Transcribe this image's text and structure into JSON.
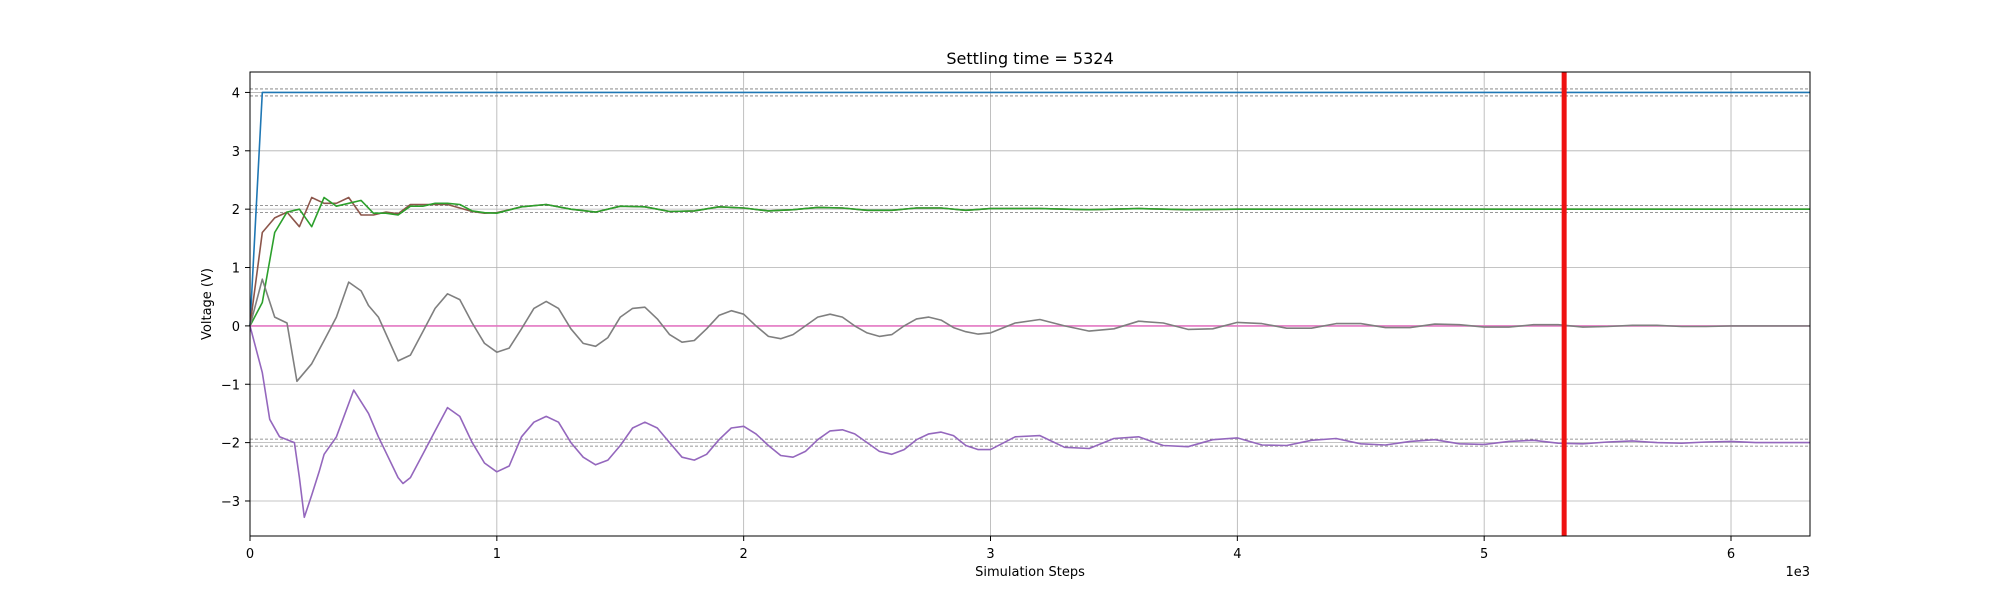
{
  "chart_data": {
    "type": "line",
    "title": "Settling time = 5324",
    "xlabel": "Simulation Steps",
    "ylabel": "Voltage (V)",
    "x_offset_label": "1e3",
    "xlim": [
      0,
      6320
    ],
    "ylim": [
      -3.6,
      4.35
    ],
    "xticks": [
      0,
      1000,
      2000,
      3000,
      4000,
      5000,
      6000
    ],
    "xtick_labels": [
      "0",
      "1",
      "2",
      "3",
      "4",
      "5",
      "6"
    ],
    "yticks": [
      -3,
      -2,
      -1,
      0,
      1,
      2,
      3,
      4
    ],
    "ytick_labels": [
      "−3",
      "−2",
      "−1",
      "0",
      "1",
      "2",
      "3",
      "4"
    ],
    "grid": true,
    "settling_time": 5324,
    "settling_line_color": "#ee1111",
    "tolerance_bands": [
      {
        "center": 4,
        "low": 3.94,
        "high": 4.06
      },
      {
        "center": 2,
        "low": 1.94,
        "high": 2.06
      },
      {
        "center": -2,
        "low": -2.06,
        "high": -1.94
      }
    ],
    "series": [
      {
        "color": "#1f77b4",
        "x": [
          0,
          50,
          6320
        ],
        "y": [
          0,
          4,
          4
        ]
      },
      {
        "color": "#8c564b",
        "x": [
          0,
          50,
          100,
          150,
          200,
          250,
          300,
          350,
          400,
          450,
          500,
          550,
          600,
          650,
          700,
          750,
          800,
          850,
          900,
          950,
          1000,
          1100,
          1200,
          1300,
          1400,
          1500,
          1600,
          1700,
          1800,
          1900,
          2000,
          2100,
          2200,
          2300,
          2400,
          2500,
          2600,
          2700,
          2800,
          2900,
          3000,
          3200,
          3400,
          3600,
          3800,
          4000,
          4400,
          4800,
          5200,
          5600,
          6000,
          6320
        ],
        "y": [
          0,
          1.6,
          1.85,
          1.95,
          1.7,
          2.2,
          2.1,
          2.1,
          2.2,
          1.9,
          1.9,
          1.95,
          1.92,
          2.08,
          2.08,
          2.08,
          2.08,
          2.02,
          1.96,
          1.93,
          1.94,
          2.04,
          2.08,
          2.0,
          1.95,
          2.05,
          2.04,
          1.96,
          1.97,
          2.04,
          2.02,
          1.97,
          1.99,
          2.03,
          2.02,
          1.98,
          1.98,
          2.02,
          2.02,
          1.98,
          2.01,
          2.01,
          1.99,
          2.01,
          1.99,
          2.0,
          2.0,
          2.0,
          2.0,
          2.0,
          2.0,
          2.0
        ]
      },
      {
        "color": "#2ca02c",
        "x": [
          0,
          50,
          100,
          150,
          200,
          250,
          300,
          350,
          400,
          450,
          500,
          550,
          600,
          650,
          700,
          750,
          800,
          850,
          900,
          950,
          1000,
          1100,
          1200,
          1300,
          1400,
          1500,
          1600,
          1700,
          1800,
          1900,
          2000,
          2100,
          2200,
          2300,
          2400,
          2500,
          2600,
          2700,
          2800,
          2900,
          3000,
          3200,
          3400,
          3600,
          3800,
          4000,
          4400,
          4800,
          5200,
          5600,
          6000,
          6320
        ],
        "y": [
          0,
          0.4,
          1.6,
          1.95,
          2.0,
          1.7,
          2.2,
          2.05,
          2.1,
          2.15,
          1.93,
          1.93,
          1.9,
          2.05,
          2.05,
          2.1,
          2.1,
          2.08,
          1.97,
          1.94,
          1.93,
          2.04,
          2.08,
          2.0,
          1.95,
          2.05,
          2.04,
          1.96,
          1.97,
          2.04,
          2.02,
          1.97,
          1.99,
          2.03,
          2.02,
          1.98,
          1.98,
          2.02,
          2.02,
          1.98,
          2.01,
          2.01,
          1.99,
          2.01,
          1.99,
          2.0,
          2.0,
          2.0,
          2.0,
          2.0,
          2.0,
          2.0
        ]
      },
      {
        "color": "#e377c2",
        "x": [
          0,
          6320
        ],
        "y": [
          0,
          0
        ]
      },
      {
        "color": "#7f7f7f",
        "x": [
          0,
          50,
          100,
          150,
          190,
          250,
          300,
          350,
          400,
          450,
          480,
          520,
          600,
          650,
          700,
          750,
          800,
          850,
          900,
          950,
          1000,
          1050,
          1100,
          1150,
          1200,
          1250,
          1300,
          1350,
          1400,
          1450,
          1500,
          1550,
          1600,
          1650,
          1700,
          1750,
          1800,
          1850,
          1900,
          1950,
          2000,
          2050,
          2100,
          2150,
          2200,
          2250,
          2300,
          2350,
          2400,
          2450,
          2500,
          2550,
          2600,
          2650,
          2700,
          2750,
          2800,
          2850,
          2900,
          2950,
          3000,
          3100,
          3200,
          3300,
          3400,
          3500,
          3600,
          3700,
          3800,
          3900,
          4000,
          4100,
          4200,
          4300,
          4400,
          4500,
          4600,
          4700,
          4800,
          4900,
          5000,
          5100,
          5200,
          5300,
          5400,
          5500,
          5600,
          5700,
          5800,
          5900,
          6000,
          6100,
          6200,
          6320
        ],
        "y": [
          0,
          0.8,
          0.15,
          0.05,
          -0.95,
          -0.65,
          -0.25,
          0.15,
          0.75,
          0.6,
          0.35,
          0.15,
          -0.6,
          -0.5,
          -0.1,
          0.3,
          0.55,
          0.45,
          0.05,
          -0.3,
          -0.45,
          -0.38,
          -0.05,
          0.3,
          0.42,
          0.3,
          -0.05,
          -0.3,
          -0.35,
          -0.2,
          0.15,
          0.3,
          0.32,
          0.12,
          -0.15,
          -0.28,
          -0.25,
          -0.05,
          0.18,
          0.26,
          0.2,
          0.0,
          -0.18,
          -0.22,
          -0.15,
          0.0,
          0.15,
          0.2,
          0.15,
          0.0,
          -0.12,
          -0.18,
          -0.15,
          0.0,
          0.12,
          0.15,
          0.1,
          -0.03,
          -0.1,
          -0.14,
          -0.12,
          0.05,
          0.11,
          0.0,
          -0.09,
          -0.05,
          0.08,
          0.05,
          -0.06,
          -0.05,
          0.06,
          0.04,
          -0.04,
          -0.04,
          0.04,
          0.04,
          -0.03,
          -0.03,
          0.03,
          0.02,
          -0.02,
          -0.02,
          0.02,
          0.02,
          -0.02,
          -0.01,
          0.01,
          0.01,
          -0.01,
          -0.01,
          0.0,
          0.0,
          0.0,
          0.0
        ]
      },
      {
        "color": "#9467bd",
        "x": [
          0,
          50,
          80,
          120,
          180,
          200,
          220,
          250,
          280,
          300,
          350,
          420,
          480,
          520,
          600,
          620,
          650,
          700,
          750,
          800,
          850,
          900,
          950,
          1000,
          1050,
          1100,
          1150,
          1200,
          1250,
          1300,
          1350,
          1400,
          1450,
          1500,
          1550,
          1600,
          1650,
          1700,
          1750,
          1800,
          1850,
          1900,
          1950,
          2000,
          2050,
          2100,
          2150,
          2200,
          2250,
          2300,
          2350,
          2400,
          2450,
          2500,
          2550,
          2600,
          2650,
          2700,
          2750,
          2800,
          2850,
          2900,
          2950,
          3000,
          3100,
          3200,
          3300,
          3400,
          3500,
          3600,
          3700,
          3800,
          3900,
          4000,
          4100,
          4200,
          4300,
          4400,
          4500,
          4600,
          4700,
          4800,
          4900,
          5000,
          5100,
          5200,
          5300,
          5400,
          5500,
          5600,
          5700,
          5800,
          5900,
          6000,
          6100,
          6200,
          6320
        ],
        "y": [
          0,
          -0.8,
          -1.6,
          -1.9,
          -2.0,
          -2.6,
          -3.28,
          -2.9,
          -2.5,
          -2.2,
          -1.9,
          -1.1,
          -1.5,
          -1.9,
          -2.6,
          -2.7,
          -2.6,
          -2.2,
          -1.8,
          -1.4,
          -1.55,
          -2.0,
          -2.35,
          -2.5,
          -2.4,
          -1.9,
          -1.65,
          -1.55,
          -1.65,
          -2.0,
          -2.25,
          -2.38,
          -2.3,
          -2.05,
          -1.75,
          -1.65,
          -1.75,
          -2.0,
          -2.25,
          -2.3,
          -2.2,
          -1.95,
          -1.75,
          -1.72,
          -1.85,
          -2.05,
          -2.22,
          -2.25,
          -2.15,
          -1.95,
          -1.8,
          -1.78,
          -1.85,
          -2.0,
          -2.15,
          -2.2,
          -2.12,
          -1.95,
          -1.85,
          -1.82,
          -1.88,
          -2.05,
          -2.12,
          -2.12,
          -1.9,
          -1.88,
          -2.08,
          -2.1,
          -1.93,
          -1.9,
          -2.05,
          -2.07,
          -1.95,
          -1.92,
          -2.04,
          -2.05,
          -1.96,
          -1.93,
          -2.02,
          -2.04,
          -1.98,
          -1.95,
          -2.02,
          -2.03,
          -1.98,
          -1.96,
          -2.01,
          -2.02,
          -1.99,
          -1.97,
          -2.0,
          -2.01,
          -1.99,
          -1.98,
          -2.0,
          -2.0,
          -2.0
        ]
      }
    ]
  }
}
